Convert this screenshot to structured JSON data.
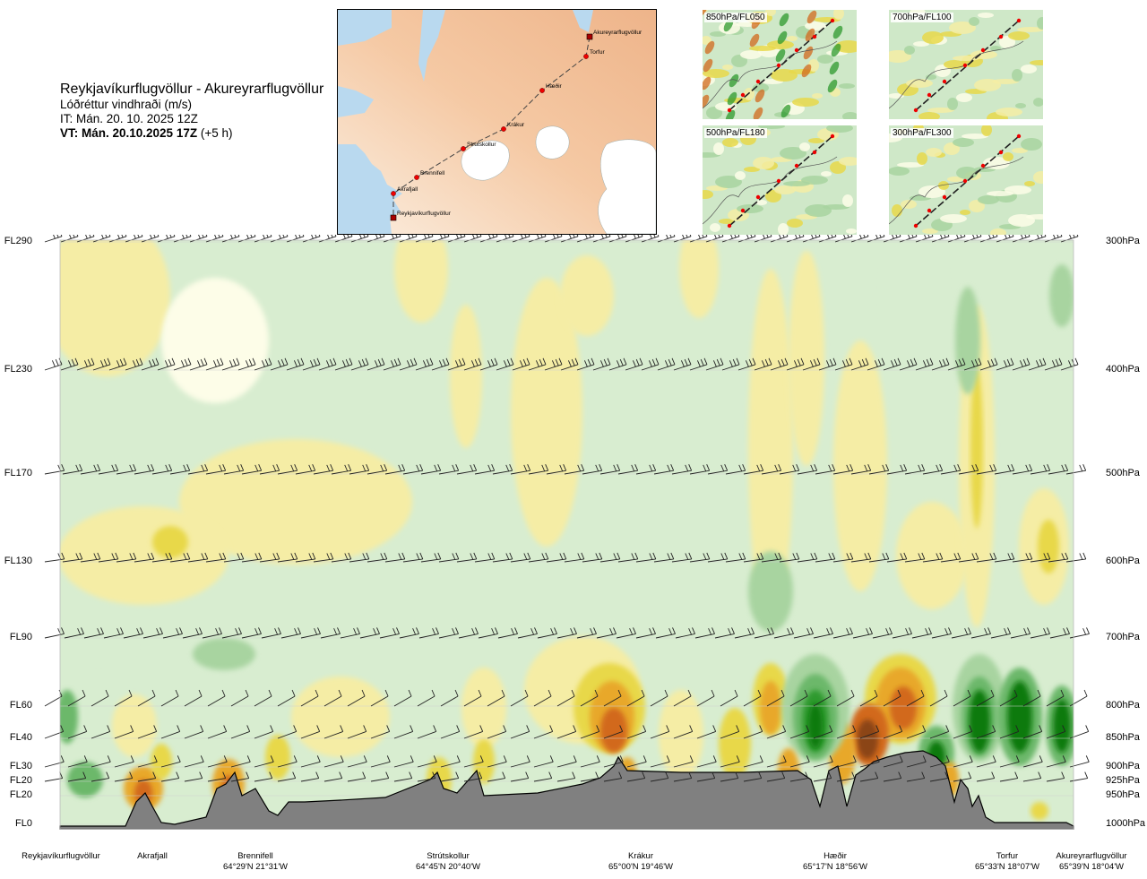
{
  "header": {
    "route": "Reykjavíkurflugvöllur - Akureyrarflugvöllur",
    "product": "Lóðréttur vindhraði (m/s)",
    "it": "IT: Mán. 20. 10. 2025 12Z",
    "vt_bold": "VT: Mán. 20.10.2025 17Z",
    "vt_offset": " (+5 h)"
  },
  "map": {
    "waypoints": [
      "Akureyrarflugvöllur",
      "Torfur",
      "Hæðir",
      "Krákur",
      "Strútskollur",
      "Brennifell",
      "Akrafjall",
      "Reykjavíkurflugvöllur"
    ]
  },
  "insets": [
    {
      "label": "850hPa/FL050"
    },
    {
      "label": "700hPa/FL100"
    },
    {
      "label": "500hPa/FL180"
    },
    {
      "label": "300hPa/FL300"
    }
  ],
  "chart_data": {
    "type": "heatmap",
    "variable": "Lóðréttur vindhraði (m/s)",
    "y_left_ticks": [
      "FL290",
      "FL230",
      "FL170",
      "FL130",
      "FL90",
      "FL60",
      "FL40",
      "FL30",
      "FL20",
      "FL20",
      "FL0"
    ],
    "y_right_ticks": [
      "300hPa",
      "400hPa",
      "500hPa",
      "600hPa",
      "700hPa",
      "800hPa",
      "850hPa",
      "900hPa",
      "925hPa",
      "950hPa",
      "1000hPa"
    ],
    "pressure_levels_hpa": [
      300,
      400,
      500,
      600,
      700,
      800,
      850,
      900,
      925,
      950,
      1000
    ],
    "locations": [
      {
        "name": "Reykjavíkurflugvöllur",
        "coord": ""
      },
      {
        "name": "Akrafjall",
        "coord": ""
      },
      {
        "name": "Brennifell",
        "coord": "64°29'N 21°31'W"
      },
      {
        "name": "Strútskollur",
        "coord": "64°45'N 20°40'W"
      },
      {
        "name": "Krákur",
        "coord": "65°00'N 19°46'W"
      },
      {
        "name": "Hæðir",
        "coord": "65°17'N 18°56'W"
      },
      {
        "name": "Torfur",
        "coord": "65°33'N 18°07'W"
      },
      {
        "name": "Akureyrarflugvöllur",
        "coord": "65°39'N 18°04'W"
      }
    ],
    "colors": {
      "strong_down": "#8b4513",
      "down3": "#d2691e",
      "down2": "#e8a82a",
      "down1": "#e8d84a",
      "weak_down": "#f5eda5",
      "neutral": "#fdfde8",
      "weak_up": "#d8edd0",
      "up1": "#a8d4a0",
      "up2": "#6cb86a",
      "up3": "#2e9a2e",
      "strong_up": "#0b7a0b",
      "terrain": "#808080"
    }
  }
}
